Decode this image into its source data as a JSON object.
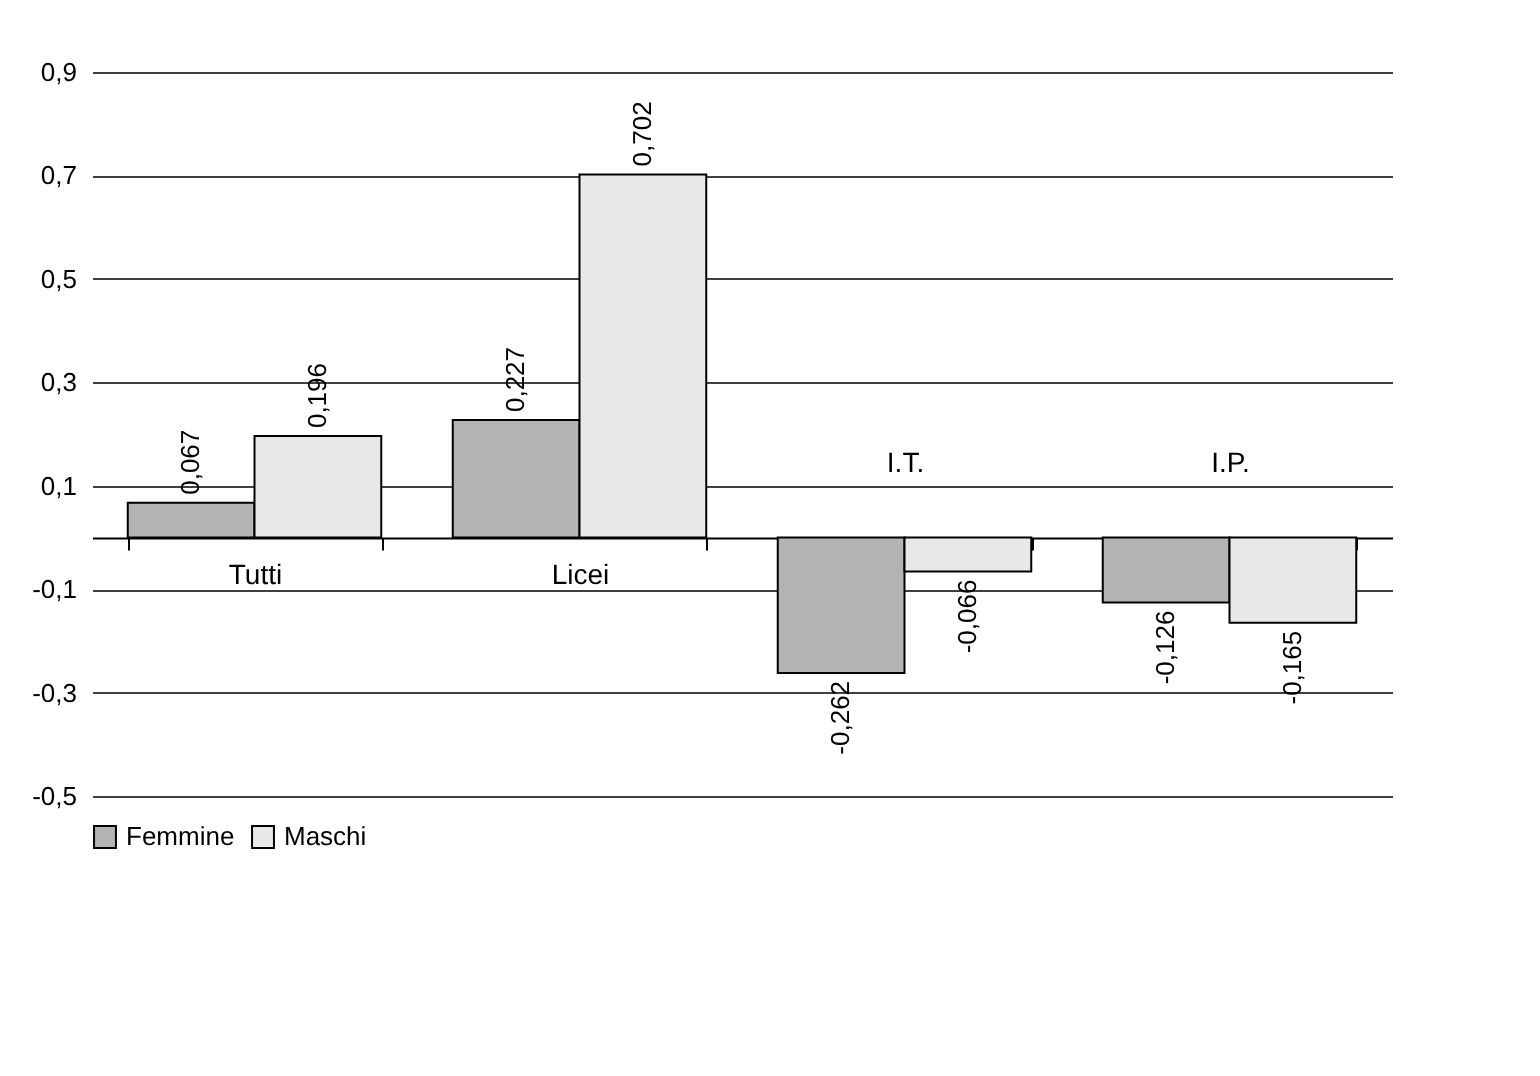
{
  "chart_data": {
    "type": "bar",
    "categories": [
      "Tutti",
      "Licei",
      "I.T.",
      "I.P."
    ],
    "series": [
      {
        "name": "Femmine",
        "color": "#b3b3b3",
        "values": [
          0.067,
          0.227,
          -0.262,
          -0.126
        ],
        "value_labels": [
          "0,067",
          "0,227",
          "-0,262",
          "-0,126"
        ]
      },
      {
        "name": "Maschi",
        "color": "#e8e8e8",
        "values": [
          0.196,
          0.702,
          -0.066,
          -0.165
        ],
        "value_labels": [
          "0,196",
          "0,702",
          "-0,066",
          "-0,165"
        ]
      }
    ],
    "ylim": [
      -0.5,
      0.9
    ],
    "yticks": [
      {
        "value": -0.5,
        "label": "-0,5"
      },
      {
        "value": -0.3,
        "label": "-0,3"
      },
      {
        "value": -0.1,
        "label": "-0,1"
      },
      {
        "value": 0.1,
        "label": "0,1"
      },
      {
        "value": 0.3,
        "label": "0,3"
      },
      {
        "value": 0.5,
        "label": "0,5"
      },
      {
        "value": 0.7,
        "label": "0,7"
      },
      {
        "value": 0.9,
        "label": "0,9"
      }
    ],
    "grid": "y",
    "legend": "bottom"
  }
}
